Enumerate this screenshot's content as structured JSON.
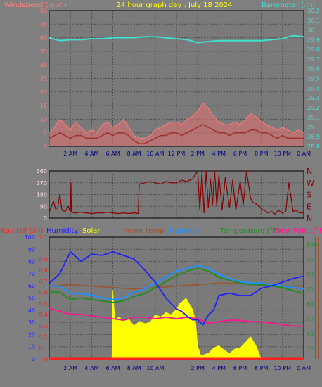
{
  "colors": {
    "background": "#808080",
    "plot_background": "#7a7a7a",
    "grid": "#4a4a4a",
    "wind_label": "#ff8080",
    "title": "#ffff00",
    "barometer": "#40e0d0",
    "wind_gust": "#ff7f7f",
    "wind_avg": "#a03030",
    "direction": "#8b0000",
    "rain": "#ff2020",
    "humidity": "#2020ff",
    "solar": "#ffff00",
    "indoor_temp": "#a0522d",
    "humidex": "#1e90ff",
    "temperature": "#228b22",
    "dew_point": "#ff1493",
    "axis_text": "#000080"
  },
  "chart_data": [
    {
      "type": "line",
      "title": "24 hour graph day : July 18 2024",
      "y_left_label": "Windspeed (mph)",
      "y_right_label": "Barometer (.in)",
      "x_tick_labels": [
        "2 AM",
        "4 AM",
        "6 AM",
        "8 AM",
        "10 AM",
        "12 PM",
        "2 PM",
        "4 PM",
        "6 PM",
        "8 PM",
        "10 PM",
        "0 AM"
      ],
      "y_left_ticks": [
        "0",
        "5",
        "10",
        "15",
        "20",
        "25",
        "30",
        "35",
        "40",
        "45",
        "50"
      ],
      "y_left_range": [
        0,
        50
      ],
      "y_right_ticks": [
        "28.8",
        "28.9",
        "29",
        "29.1",
        "29.2",
        "29.3",
        "29.4",
        "29.5",
        "29.6",
        "29.7",
        "29.8",
        "29.9",
        "30",
        "30.1",
        "30.2"
      ],
      "y_right_range": [
        28.8,
        30.2
      ],
      "x_range_hours": [
        0,
        24
      ],
      "grid": true,
      "series": [
        {
          "name": "Barometer",
          "axis": "right",
          "x": [
            0,
            1,
            2,
            3,
            4,
            5,
            6,
            7,
            8,
            9,
            10,
            11,
            12,
            13,
            14,
            15,
            16,
            17,
            18,
            19,
            20,
            21,
            22,
            23,
            24
          ],
          "values": [
            29.92,
            29.89,
            29.9,
            29.9,
            29.91,
            29.91,
            29.92,
            29.92,
            29.92,
            29.93,
            29.93,
            29.92,
            29.91,
            29.9,
            29.87,
            29.88,
            29.89,
            29.89,
            29.89,
            29.89,
            29.89,
            29.9,
            29.91,
            29.94,
            29.93
          ]
        },
        {
          "name": "Wind gust",
          "axis": "left",
          "x": [
            0,
            0.5,
            1,
            1.5,
            2,
            2.5,
            3,
            3.5,
            4,
            4.5,
            5,
            5.5,
            6,
            6.5,
            7,
            7.5,
            8,
            8.5,
            9,
            9.5,
            10,
            10.5,
            11,
            11.5,
            12,
            12.5,
            13,
            13.5,
            14,
            14.5,
            15,
            15.5,
            16,
            16.5,
            17,
            17.5,
            18,
            18.5,
            19,
            19.5,
            20,
            20.5,
            21,
            21.5,
            22,
            22.5,
            23,
            23.5,
            24
          ],
          "values": [
            5,
            7,
            10,
            8,
            6,
            9,
            7,
            5,
            6,
            5,
            8,
            9,
            7,
            8,
            10,
            7,
            4,
            3,
            3,
            4,
            6,
            7,
            8,
            9,
            9,
            8,
            10,
            11,
            13,
            16,
            14,
            11,
            9,
            8,
            8,
            9,
            8,
            10,
            12,
            11,
            9,
            8,
            7,
            6,
            7,
            6,
            5,
            6,
            5
          ]
        },
        {
          "name": "Wind average",
          "axis": "left",
          "x": [
            0,
            0.5,
            1,
            1.5,
            2,
            2.5,
            3,
            3.5,
            4,
            4.5,
            5,
            5.5,
            6,
            6.5,
            7,
            7.5,
            8,
            8.5,
            9,
            9.5,
            10,
            10.5,
            11,
            11.5,
            12,
            12.5,
            13,
            13.5,
            14,
            14.5,
            15,
            15.5,
            16,
            16.5,
            17,
            17.5,
            18,
            18.5,
            19,
            19.5,
            20,
            20.5,
            21,
            21.5,
            22,
            22.5,
            23,
            23.5,
            24
          ],
          "values": [
            3,
            4,
            5,
            4,
            3,
            4,
            4,
            3,
            3,
            3,
            4,
            5,
            4,
            5,
            5,
            4,
            2,
            1,
            1,
            2,
            3,
            4,
            4,
            5,
            5,
            4,
            5,
            6,
            7,
            8,
            7,
            6,
            5,
            5,
            4,
            5,
            5,
            5,
            6,
            6,
            5,
            5,
            4,
            3,
            4,
            3,
            3,
            3,
            3
          ]
        }
      ]
    },
    {
      "type": "line",
      "y_left_ticks": [
        "0",
        "90",
        "180",
        "270",
        "360"
      ],
      "y_left_range": [
        0,
        360
      ],
      "y_right_ticks": [
        "N",
        "W",
        "S",
        "E",
        "N"
      ],
      "x_range_hours": [
        0,
        24
      ],
      "grid": true,
      "series": [
        {
          "name": "Wind direction",
          "x": [
            0,
            0.2,
            0.4,
            0.6,
            0.8,
            1,
            1.2,
            1.5,
            1.8,
            2,
            2.05,
            2.1,
            2.3,
            2.5,
            3,
            3.5,
            4,
            4.5,
            5,
            5.5,
            6,
            6.5,
            7,
            7.5,
            8,
            8.4,
            8.45,
            8.5,
            9,
            9.5,
            10,
            10.5,
            11,
            11.5,
            12,
            12.5,
            13,
            13.5,
            14,
            14.2,
            14.4,
            14.6,
            14.8,
            15,
            15.2,
            15.4,
            15.6,
            15.8,
            16,
            16.3,
            16.6,
            17,
            17.3,
            17.6,
            18,
            18.3,
            18.6,
            19,
            19.2,
            19.5,
            19.8,
            20,
            20.3,
            20.6,
            21,
            21.3,
            21.6,
            22,
            22.3,
            22.6,
            23,
            23.3,
            23.6,
            24
          ],
          "values": [
            45,
            90,
            130,
            70,
            80,
            180,
            60,
            50,
            90,
            45,
            270,
            50,
            40,
            40,
            45,
            40,
            35,
            40,
            40,
            45,
            40,
            35,
            40,
            35,
            40,
            35,
            200,
            260,
            270,
            280,
            270,
            260,
            280,
            270,
            270,
            290,
            280,
            300,
            360,
            60,
            350,
            40,
            360,
            80,
            300,
            100,
            360,
            90,
            330,
            60,
            310,
            80,
            290,
            60,
            280,
            100,
            360,
            150,
            120,
            110,
            90,
            70,
            60,
            40,
            50,
            30,
            60,
            40,
            50,
            270,
            50,
            60,
            40,
            40
          ]
        }
      ]
    },
    {
      "type": "line",
      "x_tick_labels": [
        "2 AM",
        "4 AM",
        "6 AM",
        "8 AM",
        "10 AM",
        "2 PM",
        "4 PM",
        "6 PM",
        "8 PM",
        "10 PM",
        "0 AM"
      ],
      "legend": [
        "Rainfall (.in)",
        "Humidity",
        "Solar",
        "Indoor temp",
        "Humidex",
        "Temperature (°F)",
        "Dew Point (°F"
      ],
      "y_rain_ticks": [
        "0",
        "0.1",
        "0.2",
        "0.3",
        "0.4",
        "0.5",
        "0.6",
        "0.7",
        "0.8",
        "0.9",
        "1",
        "1.1"
      ],
      "y_rain_range": [
        0,
        1.1
      ],
      "y_humidity_ticks": [
        "0",
        "10",
        "20",
        "30",
        "40",
        "50",
        "60",
        "70",
        "80",
        "90",
        "100"
      ],
      "y_humidity_range": [
        0,
        100
      ],
      "y_temp_ticks": [
        "30",
        "40",
        "50",
        "60",
        "70",
        "80",
        "90",
        "100"
      ],
      "y_temp_range": [
        23,
        105
      ],
      "x_range_hours": [
        0,
        24
      ],
      "grid": true,
      "series": [
        {
          "name": "Humidity",
          "axis": "humidity",
          "x": [
            0,
            1,
            2,
            3,
            4,
            5,
            6,
            7,
            8,
            9,
            10,
            11,
            12,
            12.5,
            13,
            13.5,
            14,
            14.5,
            15,
            15.5,
            16,
            17,
            18,
            19,
            20,
            21,
            22,
            23,
            24
          ],
          "values": [
            62,
            70,
            88,
            80,
            86,
            85,
            88,
            85,
            82,
            73,
            63,
            50,
            41,
            39,
            35,
            32,
            32,
            28,
            36,
            40,
            52,
            54,
            52,
            52,
            58,
            60,
            63,
            66,
            68
          ]
        },
        {
          "name": "Dew Point",
          "axis": "temp",
          "x": [
            0,
            1,
            2,
            3,
            4,
            5,
            6,
            7,
            8,
            9,
            10,
            11,
            12,
            13,
            14,
            15,
            16,
            17,
            18,
            19,
            20,
            21,
            22,
            23,
            24
          ],
          "values": [
            57,
            55,
            53,
            53,
            52,
            51,
            50,
            49,
            51,
            51,
            50,
            51,
            50,
            51,
            50,
            47,
            48,
            49,
            49,
            48,
            48,
            47,
            46,
            45,
            45
          ]
        },
        {
          "name": "Temperature",
          "axis": "temp",
          "x": [
            0,
            1,
            2,
            3,
            4,
            5,
            6,
            7,
            8,
            9,
            10,
            11,
            12,
            13,
            14,
            15,
            16,
            17,
            18,
            19,
            20,
            21,
            22,
            23,
            24
          ],
          "values": [
            68,
            68,
            63,
            64,
            63,
            62,
            61,
            62,
            65,
            67,
            71,
            75,
            79,
            82,
            84,
            82,
            78,
            76,
            74,
            73,
            73,
            72,
            71,
            69,
            67
          ]
        },
        {
          "name": "Humidex",
          "axis": "temp",
          "x": [
            0,
            1,
            2,
            3,
            4,
            5,
            6,
            7,
            8,
            9,
            10,
            11,
            12,
            13,
            14,
            15,
            16,
            17,
            18,
            19,
            20,
            21,
            22,
            23,
            24
          ],
          "values": [
            72,
            72,
            67,
            67,
            66,
            64,
            63,
            64,
            68,
            70,
            74,
            78,
            82,
            84,
            86,
            84,
            80,
            77,
            75,
            74,
            74,
            73,
            72,
            71,
            70
          ]
        },
        {
          "name": "Indoor temp",
          "axis": "temp",
          "x": [
            0,
            2,
            4,
            6,
            8,
            10,
            12,
            14,
            16,
            18,
            20,
            22,
            24
          ],
          "values": [
            72,
            73,
            72,
            71,
            70,
            71,
            72,
            73,
            74,
            74,
            73,
            72,
            72
          ]
        },
        {
          "name": "Rainfall",
          "axis": "rain",
          "x": [
            0,
            24
          ],
          "values": [
            0,
            0
          ]
        },
        {
          "name": "Solar",
          "axis": "rain",
          "x": [
            0,
            5.9,
            6.0,
            6.2,
            6.6,
            7,
            7.5,
            8,
            8.5,
            9,
            9.5,
            10,
            10.5,
            11,
            11.5,
            12,
            12.3,
            12.6,
            12.9,
            13.2,
            13.5,
            13.8,
            14,
            14.3,
            14.6,
            15,
            15.5,
            16,
            16.5,
            17,
            17.5,
            18,
            18.5,
            19,
            19.5,
            20,
            20.3,
            20.6,
            21,
            22,
            23,
            24
          ],
          "values": [
            0,
            0,
            0.62,
            0.35,
            0.38,
            0.34,
            0.36,
            0.3,
            0.34,
            0.32,
            0.33,
            0.4,
            0.38,
            0.42,
            0.4,
            0.45,
            0.5,
            0.52,
            0.55,
            0.5,
            0.45,
            0.35,
            0.12,
            0.03,
            0.04,
            0.05,
            0.1,
            0.12,
            0.08,
            0.05,
            0.09,
            0.1,
            0.15,
            0.2,
            0.12,
            0,
            0,
            0,
            0,
            0,
            0,
            0
          ]
        }
      ]
    }
  ]
}
